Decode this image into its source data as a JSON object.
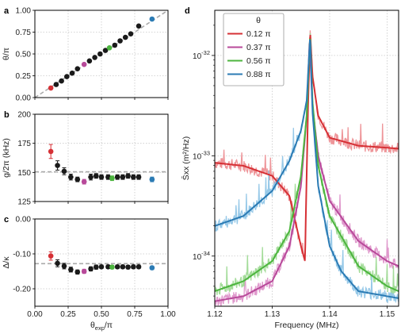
{
  "chart_data": [
    {
      "panel_label": "a",
      "type": "scatter",
      "xlim": [
        0,
        1
      ],
      "ylim": [
        0,
        1
      ],
      "ylabel": "θ/π",
      "yticks": [
        "0.00",
        "0.25",
        "0.50",
        "0.75",
        "1.00"
      ],
      "grid": true,
      "reference_line": {
        "kind": "diagonal",
        "style": "dashed",
        "color": "#aaaaaa"
      },
      "x": [
        0.12,
        0.16,
        0.2,
        0.24,
        0.28,
        0.32,
        0.37,
        0.41,
        0.45,
        0.49,
        0.53,
        0.56,
        0.6,
        0.64,
        0.68,
        0.72,
        0.78,
        0.88
      ],
      "y": [
        0.11,
        0.15,
        0.19,
        0.24,
        0.28,
        0.33,
        0.38,
        0.42,
        0.46,
        0.5,
        0.54,
        0.57,
        0.6,
        0.65,
        0.69,
        0.73,
        0.82,
        0.9
      ],
      "highlight_colors": {
        "0": "#d63035",
        "6": "#b84a9a",
        "11": "#4cb53e",
        "17": "#2b7bb4"
      }
    },
    {
      "panel_label": "b",
      "type": "scatter",
      "xlim": [
        0,
        1
      ],
      "ylim": [
        125,
        200
      ],
      "ylabel": "g/2π  (kHz)",
      "yticks": [
        "125",
        "150",
        "175",
        "200"
      ],
      "grid": true,
      "reference_line": {
        "kind": "horizontal",
        "y": 150.5,
        "style": "dashed",
        "color": "#aaaaaa"
      },
      "x": [
        0.12,
        0.17,
        0.22,
        0.27,
        0.32,
        0.37,
        0.42,
        0.46,
        0.5,
        0.55,
        0.58,
        0.62,
        0.66,
        0.7,
        0.74,
        0.78,
        0.88
      ],
      "y": [
        168,
        156,
        151,
        146,
        144,
        142,
        146,
        147,
        146,
        146,
        145,
        146,
        146,
        147,
        146,
        146,
        144
      ],
      "err": [
        6,
        4,
        3,
        2.5,
        2,
        2,
        2.5,
        2,
        2,
        2,
        2,
        2,
        2,
        2,
        2,
        2,
        2
      ],
      "highlight_colors": {
        "0": "#d63035",
        "5": "#b84a9a",
        "10": "#4cb53e",
        "16": "#2b7bb4"
      }
    },
    {
      "panel_label": "c",
      "type": "scatter",
      "xlim": [
        0,
        1
      ],
      "ylim": [
        -0.25,
        0.0
      ],
      "xlabel": "θexp/π",
      "ylabel": "Δ/κ",
      "xticks": [
        "0.00",
        "0.25",
        "0.50",
        "0.75",
        "1.00"
      ],
      "yticks": [
        "0.00",
        "-0.10",
        "-0.20"
      ],
      "grid": true,
      "reference_line": {
        "kind": "horizontal",
        "y": -0.128,
        "style": "dashed",
        "color": "#aaaaaa"
      },
      "x": [
        0.12,
        0.17,
        0.22,
        0.27,
        0.32,
        0.37,
        0.42,
        0.46,
        0.5,
        0.55,
        0.58,
        0.62,
        0.66,
        0.7,
        0.74,
        0.78,
        0.88
      ],
      "y": [
        -0.106,
        -0.127,
        -0.135,
        -0.145,
        -0.152,
        -0.15,
        -0.143,
        -0.138,
        -0.137,
        -0.137,
        -0.138,
        -0.137,
        -0.137,
        -0.138,
        -0.137,
        -0.137,
        -0.14
      ],
      "err": [
        0.012,
        0.01,
        0.008,
        0.007,
        0.006,
        0.006,
        0.006,
        0.006,
        0.005,
        0.005,
        0.005,
        0.005,
        0.005,
        0.005,
        0.005,
        0.005,
        0.005
      ],
      "highlight_colors": {
        "0": "#d63035",
        "5": "#b84a9a",
        "10": "#4cb53e",
        "16": "#2b7bb4"
      }
    },
    {
      "panel_label": "d",
      "type": "line",
      "xlim": [
        1.12,
        1.152
      ],
      "ylim_log10": [
        -34.5,
        -31.55
      ],
      "log_y": true,
      "xlabel": "Frequency (MHz)",
      "ylabel": "S̄xx (m²/Hz)",
      "xticks": [
        "1.12",
        "1.13",
        "1.14",
        "1.15"
      ],
      "ytick_exponents": [
        "-32",
        "-33",
        "-34"
      ],
      "ytick_base": "10",
      "grid": true,
      "legend": {
        "title": "θ",
        "placement": "top-left",
        "entries": [
          "0.12 π",
          "0.37 π",
          "0.56 π",
          "0.88 π"
        ]
      },
      "resonance_MHz": 1.1365,
      "series": [
        {
          "name": "0.12 π",
          "color": "#d63035",
          "data_color": "#ec8a8e",
          "x": [
            1.12,
            1.125,
            1.13,
            1.133,
            1.135,
            1.1357,
            1.1362,
            1.1366,
            1.137,
            1.138,
            1.14,
            1.145,
            1.15,
            1.152
          ],
          "y_log10": [
            -33.07,
            -33.1,
            -33.2,
            -33.4,
            -33.9,
            -34.05,
            -32.6,
            -31.75,
            -32.2,
            -32.6,
            -32.82,
            -32.9,
            -32.92,
            -32.93
          ]
        },
        {
          "name": "0.37 π",
          "color": "#b84a9a",
          "data_color": "#dd8fc8",
          "x": [
            1.12,
            1.125,
            1.13,
            1.133,
            1.135,
            1.136,
            1.1365,
            1.137,
            1.138,
            1.14,
            1.145,
            1.15,
            1.152
          ],
          "y_log10": [
            -34.45,
            -34.4,
            -34.25,
            -33.9,
            -33.3,
            -32.6,
            -31.85,
            -32.5,
            -33.0,
            -33.45,
            -33.85,
            -34.05,
            -34.1
          ]
        },
        {
          "name": "0.56 π",
          "color": "#4cb53e",
          "data_color": "#9ad88f",
          "x": [
            1.12,
            1.125,
            1.13,
            1.133,
            1.135,
            1.136,
            1.1366,
            1.137,
            1.138,
            1.14,
            1.145,
            1.15,
            1.152
          ],
          "y_log10": [
            -34.35,
            -34.25,
            -34.05,
            -33.75,
            -33.2,
            -32.6,
            -31.78,
            -32.45,
            -33.1,
            -33.6,
            -34.1,
            -34.3,
            -34.35
          ]
        },
        {
          "name": "0.88 π",
          "color": "#2b7bb4",
          "data_color": "#8cc3e6",
          "x": [
            1.12,
            1.125,
            1.13,
            1.133,
            1.135,
            1.136,
            1.1366,
            1.137,
            1.138,
            1.14,
            1.142,
            1.145,
            1.15,
            1.152
          ],
          "y_log10": [
            -33.7,
            -33.6,
            -33.35,
            -33.05,
            -32.75,
            -32.45,
            -31.8,
            -32.55,
            -33.3,
            -33.9,
            -34.15,
            -34.35,
            -34.4,
            -34.42
          ]
        }
      ]
    }
  ]
}
